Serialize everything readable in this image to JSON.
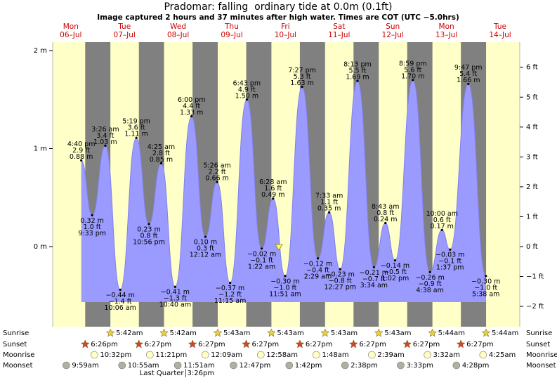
{
  "chart_data": {
    "type": "tide",
    "title": "Pradomar: falling  ordinary tide at 0.0m (0.1ft)",
    "subtitle": "Image captured 2 hours and 37 minutes after high water. Times are COT (UTC −5.0hrs)",
    "ylim": [
      -0.817,
      2.086
    ],
    "yticks": [
      {
        "value": 2,
        "label": "2 m"
      },
      {
        "value": 1,
        "label": "1 m"
      },
      {
        "value": 0,
        "label": "0 m"
      }
    ],
    "y2lim": [
      -2.68,
      6.84
    ],
    "y2ticks": [
      {
        "value": 6,
        "label": "6 ft"
      },
      {
        "value": 5,
        "label": "5 ft"
      },
      {
        "value": 4,
        "label": "4 ft"
      },
      {
        "value": 3,
        "label": "3 ft"
      },
      {
        "value": 2,
        "label": "2 ft"
      },
      {
        "value": 1,
        "label": "1 ft"
      },
      {
        "value": 0,
        "label": "0 ft"
      },
      {
        "value": -1,
        "label": "−1 ft"
      },
      {
        "value": -2,
        "label": "−2 ft"
      }
    ],
    "rows": {
      "sunrise": "Sunrise",
      "sunset": "Sunset",
      "moonrise": "Moonrise",
      "moonset": "Moonset"
    },
    "days": [
      {
        "weekday": "Mon",
        "date": "06–Jul",
        "sunrise": null,
        "sunset": "6:26pm",
        "moonrise": "10:32pm",
        "moonset": "9:59am",
        "tides": [
          {
            "time": "4:40 pm",
            "ft": "2.9 ft",
            "m": "0.88 m",
            "height": 0.88
          },
          {
            "time": "9:33 pm",
            "ft": "1.0 ft",
            "m": "0.32 m",
            "height": 0.32
          }
        ]
      },
      {
        "weekday": "Tue",
        "date": "07–Jul",
        "sunrise": "5:42am",
        "sunset": "6:27pm",
        "moonrise": "11:21pm",
        "moonset": "10:55am",
        "tides": [
          {
            "time": "3:26 am",
            "ft": "3.4 ft",
            "m": "1.03 m",
            "height": 1.03
          },
          {
            "time": "10:06 am",
            "ft": "−1.4 ft",
            "m": "−0.44 m",
            "height": -0.44
          },
          {
            "time": "5:19 pm",
            "ft": "3.6 ft",
            "m": "1.11 m",
            "height": 1.11
          },
          {
            "time": "10:56 pm",
            "ft": "0.8 ft",
            "m": "0.23 m",
            "height": 0.23
          }
        ]
      },
      {
        "weekday": "Wed",
        "date": "08–Jul",
        "sunrise": "5:42am",
        "sunset": "6:27pm",
        "moonrise": null,
        "moonset": "11:51am",
        "moon_phase": {
          "name": "Last Quarter",
          "time": "3:26pm"
        },
        "tides": [
          {
            "time": "4:25 am",
            "ft": "2.8 ft",
            "m": "0.85 m",
            "height": 0.85
          },
          {
            "time": "10:40 am",
            "ft": "−1.3 ft",
            "m": "−0.41 m",
            "height": -0.41
          },
          {
            "time": "6:00 pm",
            "ft": "4.4 ft",
            "m": "1.33 m",
            "height": 1.33
          }
        ]
      },
      {
        "weekday": "Thu",
        "date": "09–Jul",
        "sunrise": "5:43am",
        "sunset": "6:27pm",
        "moonrise": "12:09am",
        "moonset": "12:47pm",
        "tides": [
          {
            "time": "12:12 am",
            "ft": "0.3 ft",
            "m": "0.10 m",
            "height": 0.1
          },
          {
            "time": "5:26 am",
            "ft": "2.2 ft",
            "m": "0.66 m",
            "height": 0.66
          },
          {
            "time": "11:15 am",
            "ft": "−1.2 ft",
            "m": "−0.37 m",
            "height": -0.37
          },
          {
            "time": "6:43 pm",
            "ft": "4.9 ft",
            "m": "1.50 m",
            "height": 1.5
          }
        ]
      },
      {
        "weekday": "Fri",
        "date": "10–Jul",
        "sunrise": "5:43am",
        "sunset": "6:27pm",
        "moonrise": "12:58am",
        "moonset": "1:42pm",
        "tides": [
          {
            "time": "1:22 am",
            "ft": "−0.1 ft",
            "m": "−0.02 m",
            "height": -0.02
          },
          {
            "time": "6:28 am",
            "ft": "1.6 ft",
            "m": "0.49 m",
            "height": 0.49
          },
          {
            "time": "11:51 am",
            "ft": "−1.0 ft",
            "m": "−0.30 m",
            "height": -0.3
          },
          {
            "time": "7:27 pm",
            "ft": "5.3 ft",
            "m": "1.63 m",
            "height": 1.63
          }
        ]
      },
      {
        "weekday": "Sat",
        "date": "11–Jul",
        "sunrise": "5:43am",
        "sunset": "6:27pm",
        "moonrise": "1:48am",
        "moonset": "2:38pm",
        "tides": [
          {
            "time": "2:29 am",
            "ft": "−0.4 ft",
            "m": "−0.12 m",
            "height": -0.12
          },
          {
            "time": "7:33 am",
            "ft": "1.1 ft",
            "m": "0.35 m",
            "height": 0.35
          },
          {
            "time": "12:27 pm",
            "ft": "−0.8 ft",
            "m": "−0.23 m",
            "height": -0.23
          },
          {
            "time": "8:13 pm",
            "ft": "5.5 ft",
            "m": "1.69 m",
            "height": 1.69
          }
        ]
      },
      {
        "weekday": "Sun",
        "date": "12–Jul",
        "sunrise": "5:43am",
        "sunset": "6:27pm",
        "moonrise": "2:39am",
        "moonset": "3:33pm",
        "tides": [
          {
            "time": "3:34 am",
            "ft": "−0.7 ft",
            "m": "−0.21 m",
            "height": -0.21
          },
          {
            "time": "8:43 am",
            "ft": "0.8 ft",
            "m": "0.24 m",
            "height": 0.24
          },
          {
            "time": "1:02 pm",
            "ft": "−0.5 ft",
            "m": "−0.14 m",
            "height": -0.14
          },
          {
            "time": "8:59 pm",
            "ft": "5.6 ft",
            "m": "1.70 m",
            "height": 1.7
          }
        ]
      },
      {
        "weekday": "Mon",
        "date": "13–Jul",
        "sunrise": "5:44am",
        "sunset": "6:27pm",
        "moonrise": "3:32am",
        "moonset": "4:28pm",
        "tides": [
          {
            "time": "4:38 am",
            "ft": "−0.9 ft",
            "m": "−0.26 m",
            "height": -0.26
          },
          {
            "time": "10:00 am",
            "ft": "0.6 ft",
            "m": "0.17 m",
            "height": 0.17
          },
          {
            "time": "1:37 pm",
            "ft": "−0.1 ft",
            "m": "−0.03 m",
            "height": -0.03
          },
          {
            "time": "9:47 pm",
            "ft": "5.4 ft",
            "m": "1.66 m",
            "height": 1.66
          }
        ]
      },
      {
        "weekday": "Tue",
        "date": "14–Jul",
        "sunrise": "5:44am",
        "sunset": null,
        "moonrise": "4:25am",
        "moonset": null,
        "tides": [
          {
            "time": "5:38 am",
            "ft": "−1.0 ft",
            "m": "−0.30 m",
            "height": -0.3
          }
        ]
      }
    ]
  }
}
